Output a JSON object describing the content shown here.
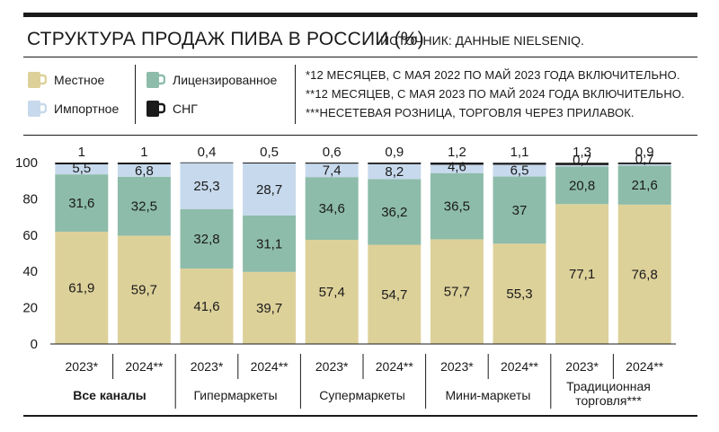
{
  "header": {
    "title": "СТРУКТУРА ПРОДАЖ ПИВА В РОССИИ (%)",
    "source": "ИСТОЧНИК: ДАННЫЕ NIELSENIQ."
  },
  "legend": [
    {
      "key": "local",
      "label": "Местное",
      "color": "#ddd19a"
    },
    {
      "key": "import",
      "label": "Импортное",
      "color": "#c7d9ec"
    },
    {
      "key": "licensed",
      "label": "Лицензированное",
      "color": "#8dbcaa"
    },
    {
      "key": "cis",
      "label": "СНГ",
      "color": "#1a1a1a"
    }
  ],
  "notes": [
    "*12 МЕСЯЦЕВ, С МАЯ 2022 ПО МАЙ 2023 ГОДА ВКЛЮЧИТЕЛЬНО.",
    "**12 МЕСЯЦЕВ, С МАЯ 2023 ПО МАЙ 2024 ГОДА ВКЛЮЧИТЕЛЬНО.",
    "***НЕСЕТЕВАЯ РОЗНИЦА, ТОРГОВЛЯ ЧЕРЕЗ ПРИЛАВОК."
  ],
  "chart_data": {
    "type": "bar",
    "stacked": true,
    "ylim": [
      0,
      100
    ],
    "yticks": [
      "0",
      "20",
      "40",
      "60",
      "80",
      "100"
    ],
    "categories": [
      "2023*",
      "2024**",
      "2023*",
      "2024**",
      "2023*",
      "2024**",
      "2023*",
      "2024**",
      "2023*",
      "2024**"
    ],
    "groups": [
      {
        "label": "Все каналы",
        "bold": true
      },
      {
        "label": "Гипермаркеты",
        "bold": false
      },
      {
        "label": "Супермаркеты",
        "bold": false
      },
      {
        "label": "Мини-маркеты",
        "bold": false
      },
      {
        "label": "Традиционная торговля***",
        "bold": false
      }
    ],
    "series": [
      {
        "name": "Местное",
        "values": [
          61.9,
          59.7,
          41.6,
          39.7,
          57.4,
          54.7,
          57.7,
          55.3,
          77.1,
          76.8
        ],
        "labels": [
          "61,9",
          "59,7",
          "41,6",
          "39,7",
          "57,4",
          "54,7",
          "57,7",
          "55,3",
          "77,1",
          "76,8"
        ]
      },
      {
        "name": "Лицензированное",
        "values": [
          31.6,
          32.5,
          32.8,
          31.1,
          34.6,
          36.2,
          36.5,
          37,
          20.8,
          21.6
        ],
        "labels": [
          "31,6",
          "32,5",
          "32,8",
          "31,1",
          "34,6",
          "36,2",
          "36,5",
          "37",
          "20,8",
          "21,6"
        ]
      },
      {
        "name": "Импортное",
        "values": [
          5.5,
          6.8,
          25.3,
          28.7,
          7.4,
          8.2,
          4.6,
          6.5,
          0.7,
          0.7
        ],
        "labels": [
          "5,5",
          "6,8",
          "25,3",
          "28,7",
          "7,4",
          "8,2",
          "4,6",
          "6,5",
          "0,7",
          "0,7"
        ]
      },
      {
        "name": "СНГ",
        "values": [
          1,
          1,
          0.4,
          0.5,
          0.6,
          0.9,
          1.2,
          1.1,
          1.3,
          0.9
        ],
        "labels": [
          "1",
          "1",
          "0,4",
          "0,5",
          "0,6",
          "0,9",
          "1,2",
          "1,1",
          "1,3",
          "0,9"
        ]
      }
    ],
    "colors": {
      "local": "#ddd19a",
      "licensed": "#8dbcaa",
      "import": "#c7d9ec",
      "cis": "#1a1a1a"
    }
  }
}
